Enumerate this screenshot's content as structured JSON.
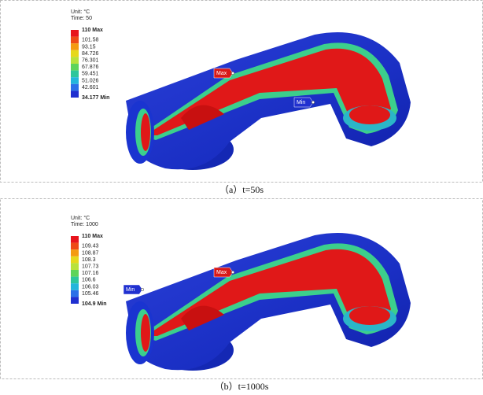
{
  "panels": [
    {
      "unit": "Unit: °C",
      "time": "Time: 50",
      "legend": {
        "labels": [
          "110 Max",
          "101.58",
          "93.15",
          "84.726",
          "76.301",
          "67.876",
          "59.451",
          "51.026",
          "42.601",
          "34.177 Min"
        ],
        "colors": [
          "#e8141c",
          "#ee4a16",
          "#f49a10",
          "#e6d81c",
          "#b8e23c",
          "#5ed45a",
          "#2cc69c",
          "#22b6dc",
          "#2a70e8",
          "#1f2fd0"
        ]
      },
      "max_tag": "Max",
      "min_tag": "Min",
      "caption": "（a）t=50s"
    },
    {
      "unit": "Unit: °C",
      "time": "Time: 1000",
      "legend": {
        "labels": [
          "110 Max",
          "109.43",
          "108.87",
          "108.3",
          "107.73",
          "107.16",
          "106.6",
          "106.03",
          "105.46",
          "104.9 Min"
        ],
        "colors": [
          "#e8141c",
          "#ee4a16",
          "#f49a10",
          "#e6d81c",
          "#b8e23c",
          "#5ed45a",
          "#2cc69c",
          "#22b6dc",
          "#2a70e8",
          "#1f2fd0"
        ]
      },
      "max_tag": "Max",
      "min_tag": "Min",
      "caption": "（b）t=1000s"
    }
  ]
}
